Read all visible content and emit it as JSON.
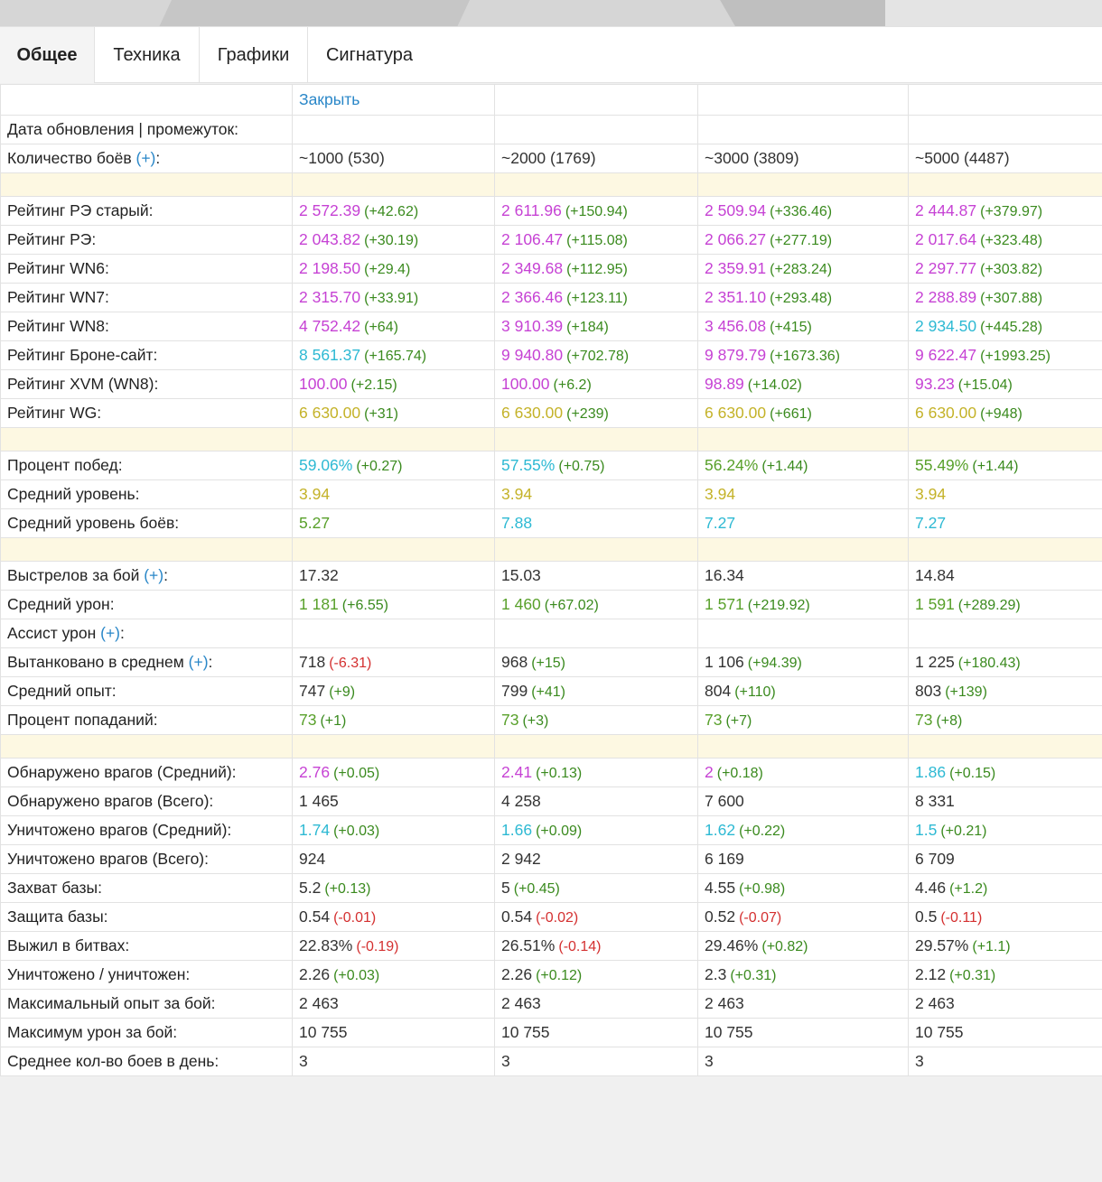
{
  "tabs": [
    "Общее",
    "Техника",
    "Графики",
    "Сигнатура"
  ],
  "close_label": "Закрыть",
  "plus_label": "(+)",
  "colors": {
    "magenta": "#c642d4",
    "cyan": "#2db9d3",
    "green": "#58a02a",
    "yellow": "#c4b228",
    "dark": "#333333",
    "positive": "#3a8a1e",
    "negative": "#d43030",
    "link": "#2a87c8"
  },
  "rows": [
    {
      "label": "Дата обновления | промежуток:",
      "cells": [
        {
          "v": ""
        },
        {
          "v": ""
        },
        {
          "v": ""
        },
        {
          "v": ""
        }
      ]
    },
    {
      "label": "Количество боёв",
      "plus": true,
      "cells": [
        {
          "v": "~1000 (530)",
          "c": "dark"
        },
        {
          "v": "~2000 (1769)",
          "c": "dark"
        },
        {
          "v": "~3000 (3809)",
          "c": "dark"
        },
        {
          "v": "~5000 (4487)",
          "c": "dark"
        }
      ]
    },
    {
      "sep": true
    },
    {
      "label": "Рейтинг РЭ старый:",
      "cells": [
        {
          "v": "2 572.39",
          "c": "mag",
          "d": "(+42.62)"
        },
        {
          "v": "2 611.96",
          "c": "mag",
          "d": "(+150.94)"
        },
        {
          "v": "2 509.94",
          "c": "mag",
          "d": "(+336.46)"
        },
        {
          "v": "2 444.87",
          "c": "mag",
          "d": "(+379.97)"
        }
      ]
    },
    {
      "label": "Рейтинг РЭ:",
      "cells": [
        {
          "v": "2 043.82",
          "c": "mag",
          "d": "(+30.19)"
        },
        {
          "v": "2 106.47",
          "c": "mag",
          "d": "(+115.08)"
        },
        {
          "v": "2 066.27",
          "c": "mag",
          "d": "(+277.19)"
        },
        {
          "v": "2 017.64",
          "c": "mag",
          "d": "(+323.48)"
        }
      ]
    },
    {
      "label": "Рейтинг WN6:",
      "cells": [
        {
          "v": "2 198.50",
          "c": "mag",
          "d": "(+29.4)"
        },
        {
          "v": "2 349.68",
          "c": "mag",
          "d": "(+112.95)"
        },
        {
          "v": "2 359.91",
          "c": "mag",
          "d": "(+283.24)"
        },
        {
          "v": "2 297.77",
          "c": "mag",
          "d": "(+303.82)"
        }
      ]
    },
    {
      "label": "Рейтинг WN7:",
      "cells": [
        {
          "v": "2 315.70",
          "c": "mag",
          "d": "(+33.91)"
        },
        {
          "v": "2 366.46",
          "c": "mag",
          "d": "(+123.11)"
        },
        {
          "v": "2 351.10",
          "c": "mag",
          "d": "(+293.48)"
        },
        {
          "v": "2 288.89",
          "c": "mag",
          "d": "(+307.88)"
        }
      ]
    },
    {
      "label": "Рейтинг WN8:",
      "cells": [
        {
          "v": "4 752.42",
          "c": "mag",
          "d": "(+64)"
        },
        {
          "v": "3 910.39",
          "c": "mag",
          "d": "(+184)"
        },
        {
          "v": "3 456.08",
          "c": "mag",
          "d": "(+415)"
        },
        {
          "v": "2 934.50",
          "c": "cyan",
          "d": "(+445.28)"
        }
      ]
    },
    {
      "label": "Рейтинг Броне-сайт:",
      "cells": [
        {
          "v": "8 561.37",
          "c": "cyan",
          "d": "(+165.74)"
        },
        {
          "v": "9 940.80",
          "c": "mag",
          "d": "(+702.78)"
        },
        {
          "v": "9 879.79",
          "c": "mag",
          "d": "(+1673.36)"
        },
        {
          "v": "9 622.47",
          "c": "mag",
          "d": "(+1993.25)"
        }
      ]
    },
    {
      "label": "Рейтинг XVM (WN8):",
      "cells": [
        {
          "v": "100.00",
          "c": "mag",
          "d": "(+2.15)"
        },
        {
          "v": "100.00",
          "c": "mag",
          "d": "(+6.2)"
        },
        {
          "v": "98.89",
          "c": "mag",
          "d": "(+14.02)"
        },
        {
          "v": "93.23",
          "c": "mag",
          "d": "(+15.04)"
        }
      ]
    },
    {
      "label": "Рейтинг WG:",
      "cells": [
        {
          "v": "6 630.00",
          "c": "yel",
          "d": "(+31)"
        },
        {
          "v": "6 630.00",
          "c": "yel",
          "d": "(+239)"
        },
        {
          "v": "6 630.00",
          "c": "yel",
          "d": "(+661)"
        },
        {
          "v": "6 630.00",
          "c": "yel",
          "d": "(+948)"
        }
      ]
    },
    {
      "sep": true
    },
    {
      "label": "Процент побед:",
      "cells": [
        {
          "v": "59.06%",
          "c": "cyan",
          "d": "(+0.27)"
        },
        {
          "v": "57.55%",
          "c": "cyan",
          "d": "(+0.75)"
        },
        {
          "v": "56.24%",
          "c": "grn",
          "d": "(+1.44)"
        },
        {
          "v": "55.49%",
          "c": "grn",
          "d": "(+1.44)"
        }
      ]
    },
    {
      "label": "Средний уровень:",
      "cells": [
        {
          "v": "3.94",
          "c": "yel"
        },
        {
          "v": "3.94",
          "c": "yel"
        },
        {
          "v": "3.94",
          "c": "yel"
        },
        {
          "v": "3.94",
          "c": "yel"
        }
      ]
    },
    {
      "label": "Средний уровень боёв:",
      "cells": [
        {
          "v": "5.27",
          "c": "grn"
        },
        {
          "v": "7.88",
          "c": "cyan"
        },
        {
          "v": "7.27",
          "c": "cyan"
        },
        {
          "v": "7.27",
          "c": "cyan"
        }
      ]
    },
    {
      "sep": true
    },
    {
      "label": "Выстрелов за бой",
      "plus": true,
      "cells": [
        {
          "v": "17.32",
          "c": "dark"
        },
        {
          "v": "15.03",
          "c": "dark"
        },
        {
          "v": "16.34",
          "c": "dark"
        },
        {
          "v": "14.84",
          "c": "dark"
        }
      ]
    },
    {
      "label": "Средний урон:",
      "cells": [
        {
          "v": "1 181",
          "c": "grn",
          "d": "(+6.55)"
        },
        {
          "v": "1 460",
          "c": "grn",
          "d": "(+67.02)"
        },
        {
          "v": "1 571",
          "c": "grn",
          "d": "(+219.92)"
        },
        {
          "v": "1 591",
          "c": "grn",
          "d": "(+289.29)"
        }
      ]
    },
    {
      "label": "Ассист урон",
      "plus": true,
      "cells": [
        {
          "v": ""
        },
        {
          "v": ""
        },
        {
          "v": ""
        },
        {
          "v": ""
        }
      ]
    },
    {
      "label": "Вытанковано в среднем",
      "plus": true,
      "cells": [
        {
          "v": "718",
          "c": "dark",
          "d": "(-6.31)",
          "neg": true
        },
        {
          "v": "968",
          "c": "dark",
          "d": "(+15)"
        },
        {
          "v": "1 106",
          "c": "dark",
          "d": "(+94.39)"
        },
        {
          "v": "1 225",
          "c": "dark",
          "d": "(+180.43)"
        }
      ]
    },
    {
      "label": "Средний опыт:",
      "cells": [
        {
          "v": "747",
          "c": "dark",
          "d": "(+9)"
        },
        {
          "v": "799",
          "c": "dark",
          "d": "(+41)"
        },
        {
          "v": "804",
          "c": "dark",
          "d": "(+110)"
        },
        {
          "v": "803",
          "c": "dark",
          "d": "(+139)"
        }
      ]
    },
    {
      "label": "Процент попаданий:",
      "cells": [
        {
          "v": "73",
          "c": "grn",
          "d": "(+1)"
        },
        {
          "v": "73",
          "c": "grn",
          "d": "(+3)"
        },
        {
          "v": "73",
          "c": "grn",
          "d": "(+7)"
        },
        {
          "v": "73",
          "c": "grn",
          "d": "(+8)"
        }
      ]
    },
    {
      "sep": true
    },
    {
      "label": "Обнаружено врагов (Средний):",
      "cells": [
        {
          "v": "2.76",
          "c": "mag",
          "d": "(+0.05)"
        },
        {
          "v": "2.41",
          "c": "mag",
          "d": "(+0.13)"
        },
        {
          "v": "2",
          "c": "mag",
          "d": "(+0.18)"
        },
        {
          "v": "1.86",
          "c": "cyan",
          "d": "(+0.15)"
        }
      ]
    },
    {
      "label": "Обнаружено врагов (Всего):",
      "cells": [
        {
          "v": "1 465",
          "c": "dark"
        },
        {
          "v": "4 258",
          "c": "dark"
        },
        {
          "v": "7 600",
          "c": "dark"
        },
        {
          "v": "8 331",
          "c": "dark"
        }
      ]
    },
    {
      "label": "Уничтожено врагов (Средний):",
      "cells": [
        {
          "v": "1.74",
          "c": "cyan",
          "d": "(+0.03)"
        },
        {
          "v": "1.66",
          "c": "cyan",
          "d": "(+0.09)"
        },
        {
          "v": "1.62",
          "c": "cyan",
          "d": "(+0.22)"
        },
        {
          "v": "1.5",
          "c": "cyan",
          "d": "(+0.21)"
        }
      ]
    },
    {
      "label": "Уничтожено врагов (Всего):",
      "cells": [
        {
          "v": "924",
          "c": "dark"
        },
        {
          "v": "2 942",
          "c": "dark"
        },
        {
          "v": "6 169",
          "c": "dark"
        },
        {
          "v": "6 709",
          "c": "dark"
        }
      ]
    },
    {
      "label": "Захват базы:",
      "cells": [
        {
          "v": "5.2",
          "c": "dark",
          "d": "(+0.13)"
        },
        {
          "v": "5",
          "c": "dark",
          "d": "(+0.45)"
        },
        {
          "v": "4.55",
          "c": "dark",
          "d": "(+0.98)"
        },
        {
          "v": "4.46",
          "c": "dark",
          "d": "(+1.2)"
        }
      ]
    },
    {
      "label": "Защита базы:",
      "cells": [
        {
          "v": "0.54",
          "c": "dark",
          "d": "(-0.01)",
          "neg": true
        },
        {
          "v": "0.54",
          "c": "dark",
          "d": "(-0.02)",
          "neg": true
        },
        {
          "v": "0.52",
          "c": "dark",
          "d": "(-0.07)",
          "neg": true
        },
        {
          "v": "0.5",
          "c": "dark",
          "d": "(-0.11)",
          "neg": true
        }
      ]
    },
    {
      "label": "Выжил в битвах:",
      "cells": [
        {
          "v": "22.83%",
          "c": "dark",
          "d": "(-0.19)",
          "neg": true
        },
        {
          "v": "26.51%",
          "c": "dark",
          "d": "(-0.14)",
          "neg": true
        },
        {
          "v": "29.46%",
          "c": "dark",
          "d": "(+0.82)"
        },
        {
          "v": "29.57%",
          "c": "dark",
          "d": "(+1.1)"
        }
      ]
    },
    {
      "label": "Уничтожено / уничтожен:",
      "cells": [
        {
          "v": "2.26",
          "c": "dark",
          "d": "(+0.03)"
        },
        {
          "v": "2.26",
          "c": "dark",
          "d": "(+0.12)"
        },
        {
          "v": "2.3",
          "c": "dark",
          "d": "(+0.31)"
        },
        {
          "v": "2.12",
          "c": "dark",
          "d": "(+0.31)"
        }
      ]
    },
    {
      "label": "Максимальный опыт за бой:",
      "cells": [
        {
          "v": "2 463",
          "c": "dark"
        },
        {
          "v": "2 463",
          "c": "dark"
        },
        {
          "v": "2 463",
          "c": "dark"
        },
        {
          "v": "2 463",
          "c": "dark"
        }
      ]
    },
    {
      "label": "Максимум урон за бой:",
      "cells": [
        {
          "v": "10 755",
          "c": "dark"
        },
        {
          "v": "10 755",
          "c": "dark"
        },
        {
          "v": "10 755",
          "c": "dark"
        },
        {
          "v": "10 755",
          "c": "dark"
        }
      ]
    },
    {
      "label": "Среднее кол-во боев в день:",
      "cells": [
        {
          "v": "3",
          "c": "dark"
        },
        {
          "v": "3",
          "c": "dark"
        },
        {
          "v": "3",
          "c": "dark"
        },
        {
          "v": "3",
          "c": "dark"
        }
      ]
    }
  ]
}
